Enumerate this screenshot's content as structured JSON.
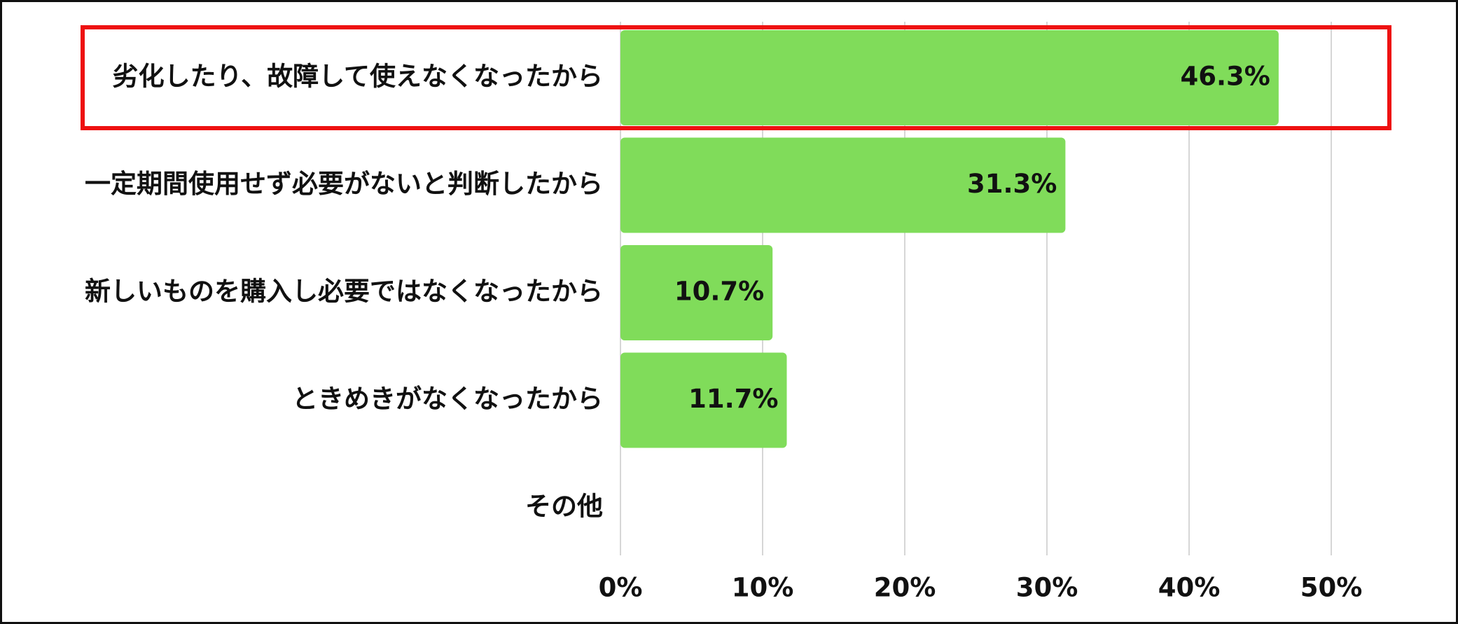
{
  "chart_data": {
    "type": "bar",
    "orientation": "horizontal",
    "categories": [
      "劣化したり、故障して使えなくなったから",
      "一定期間使用せず必要がないと判断したから",
      "新しいものを購入し必要ではなくなったから",
      "ときめきがなくなったから",
      "その他"
    ],
    "values": [
      46.3,
      31.3,
      10.7,
      11.7,
      0
    ],
    "value_labels": [
      "46.3%",
      "31.3%",
      "10.7%",
      "11.7%",
      ""
    ],
    "x_ticks": [
      0,
      10,
      20,
      30,
      40,
      50
    ],
    "x_tick_labels": [
      "0%",
      "10%",
      "20%",
      "30%",
      "40%",
      "50%"
    ],
    "xlim": [
      0,
      50
    ],
    "grid": true,
    "highlighted_category_index": 0,
    "colors": {
      "bar": "#80dc5a",
      "highlight_box": "#ee1111",
      "grid": "#d6d6d6",
      "text": "#111111"
    }
  }
}
